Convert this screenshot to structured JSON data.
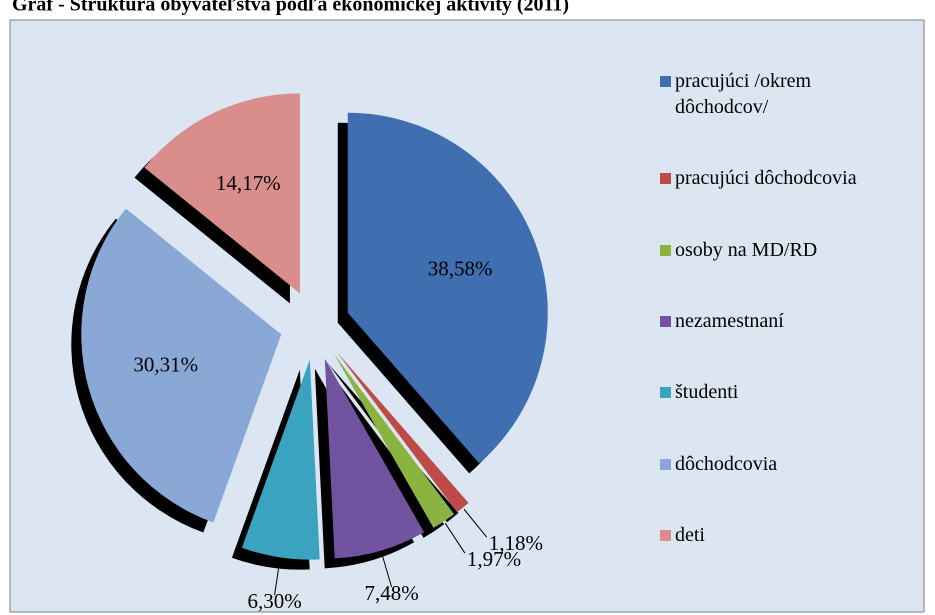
{
  "chart_data": {
    "type": "pie",
    "title": "Graf - Štruktúra obyvateľstva podľa ekonomickej aktivity (2011)",
    "categories": [
      "pracujúci /okrem dôchodcov/",
      "pracujúci dôchodcovia",
      "osoby na MD/RD",
      "nezamestnaní",
      "študenti",
      "dôchodcovia",
      "deti"
    ],
    "values": [
      38.58,
      1.18,
      1.97,
      7.48,
      6.3,
      30.31,
      14.17
    ],
    "value_labels": [
      "38,58%",
      "1,18%",
      "1,97%",
      "7,48%",
      "6,30%",
      "30,31%",
      "14,17%"
    ],
    "colors": [
      "#3f6fb0",
      "#be4b48",
      "#8bb33f",
      "#7253a0",
      "#3aa3bf",
      "#8aa8d6",
      "#d98e8c"
    ],
    "legend": "right"
  }
}
